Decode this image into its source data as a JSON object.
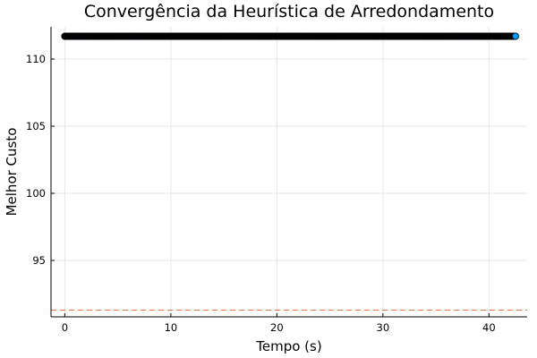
{
  "chart_data": {
    "type": "scatter",
    "title": "Convergência da Heurística de Arredondamento",
    "xlabel": "Tempo (s)",
    "ylabel": "Melhor Custo",
    "xlim": [
      -1.3,
      43.6
    ],
    "ylim": [
      90.8,
      112.4
    ],
    "xticks": [
      0,
      10,
      20,
      30,
      40
    ],
    "yticks": [
      95,
      100,
      105,
      110
    ],
    "grid": true,
    "legend": "none",
    "series": [
      {
        "color": "#009af9",
        "marker": "circle",
        "x_start": 0,
        "x_end": 42.5,
        "y": 111.7,
        "point_count": 1000
      }
    ],
    "reference_line": {
      "y": 91.3,
      "color": "#e26f46",
      "style": "dashed"
    }
  }
}
